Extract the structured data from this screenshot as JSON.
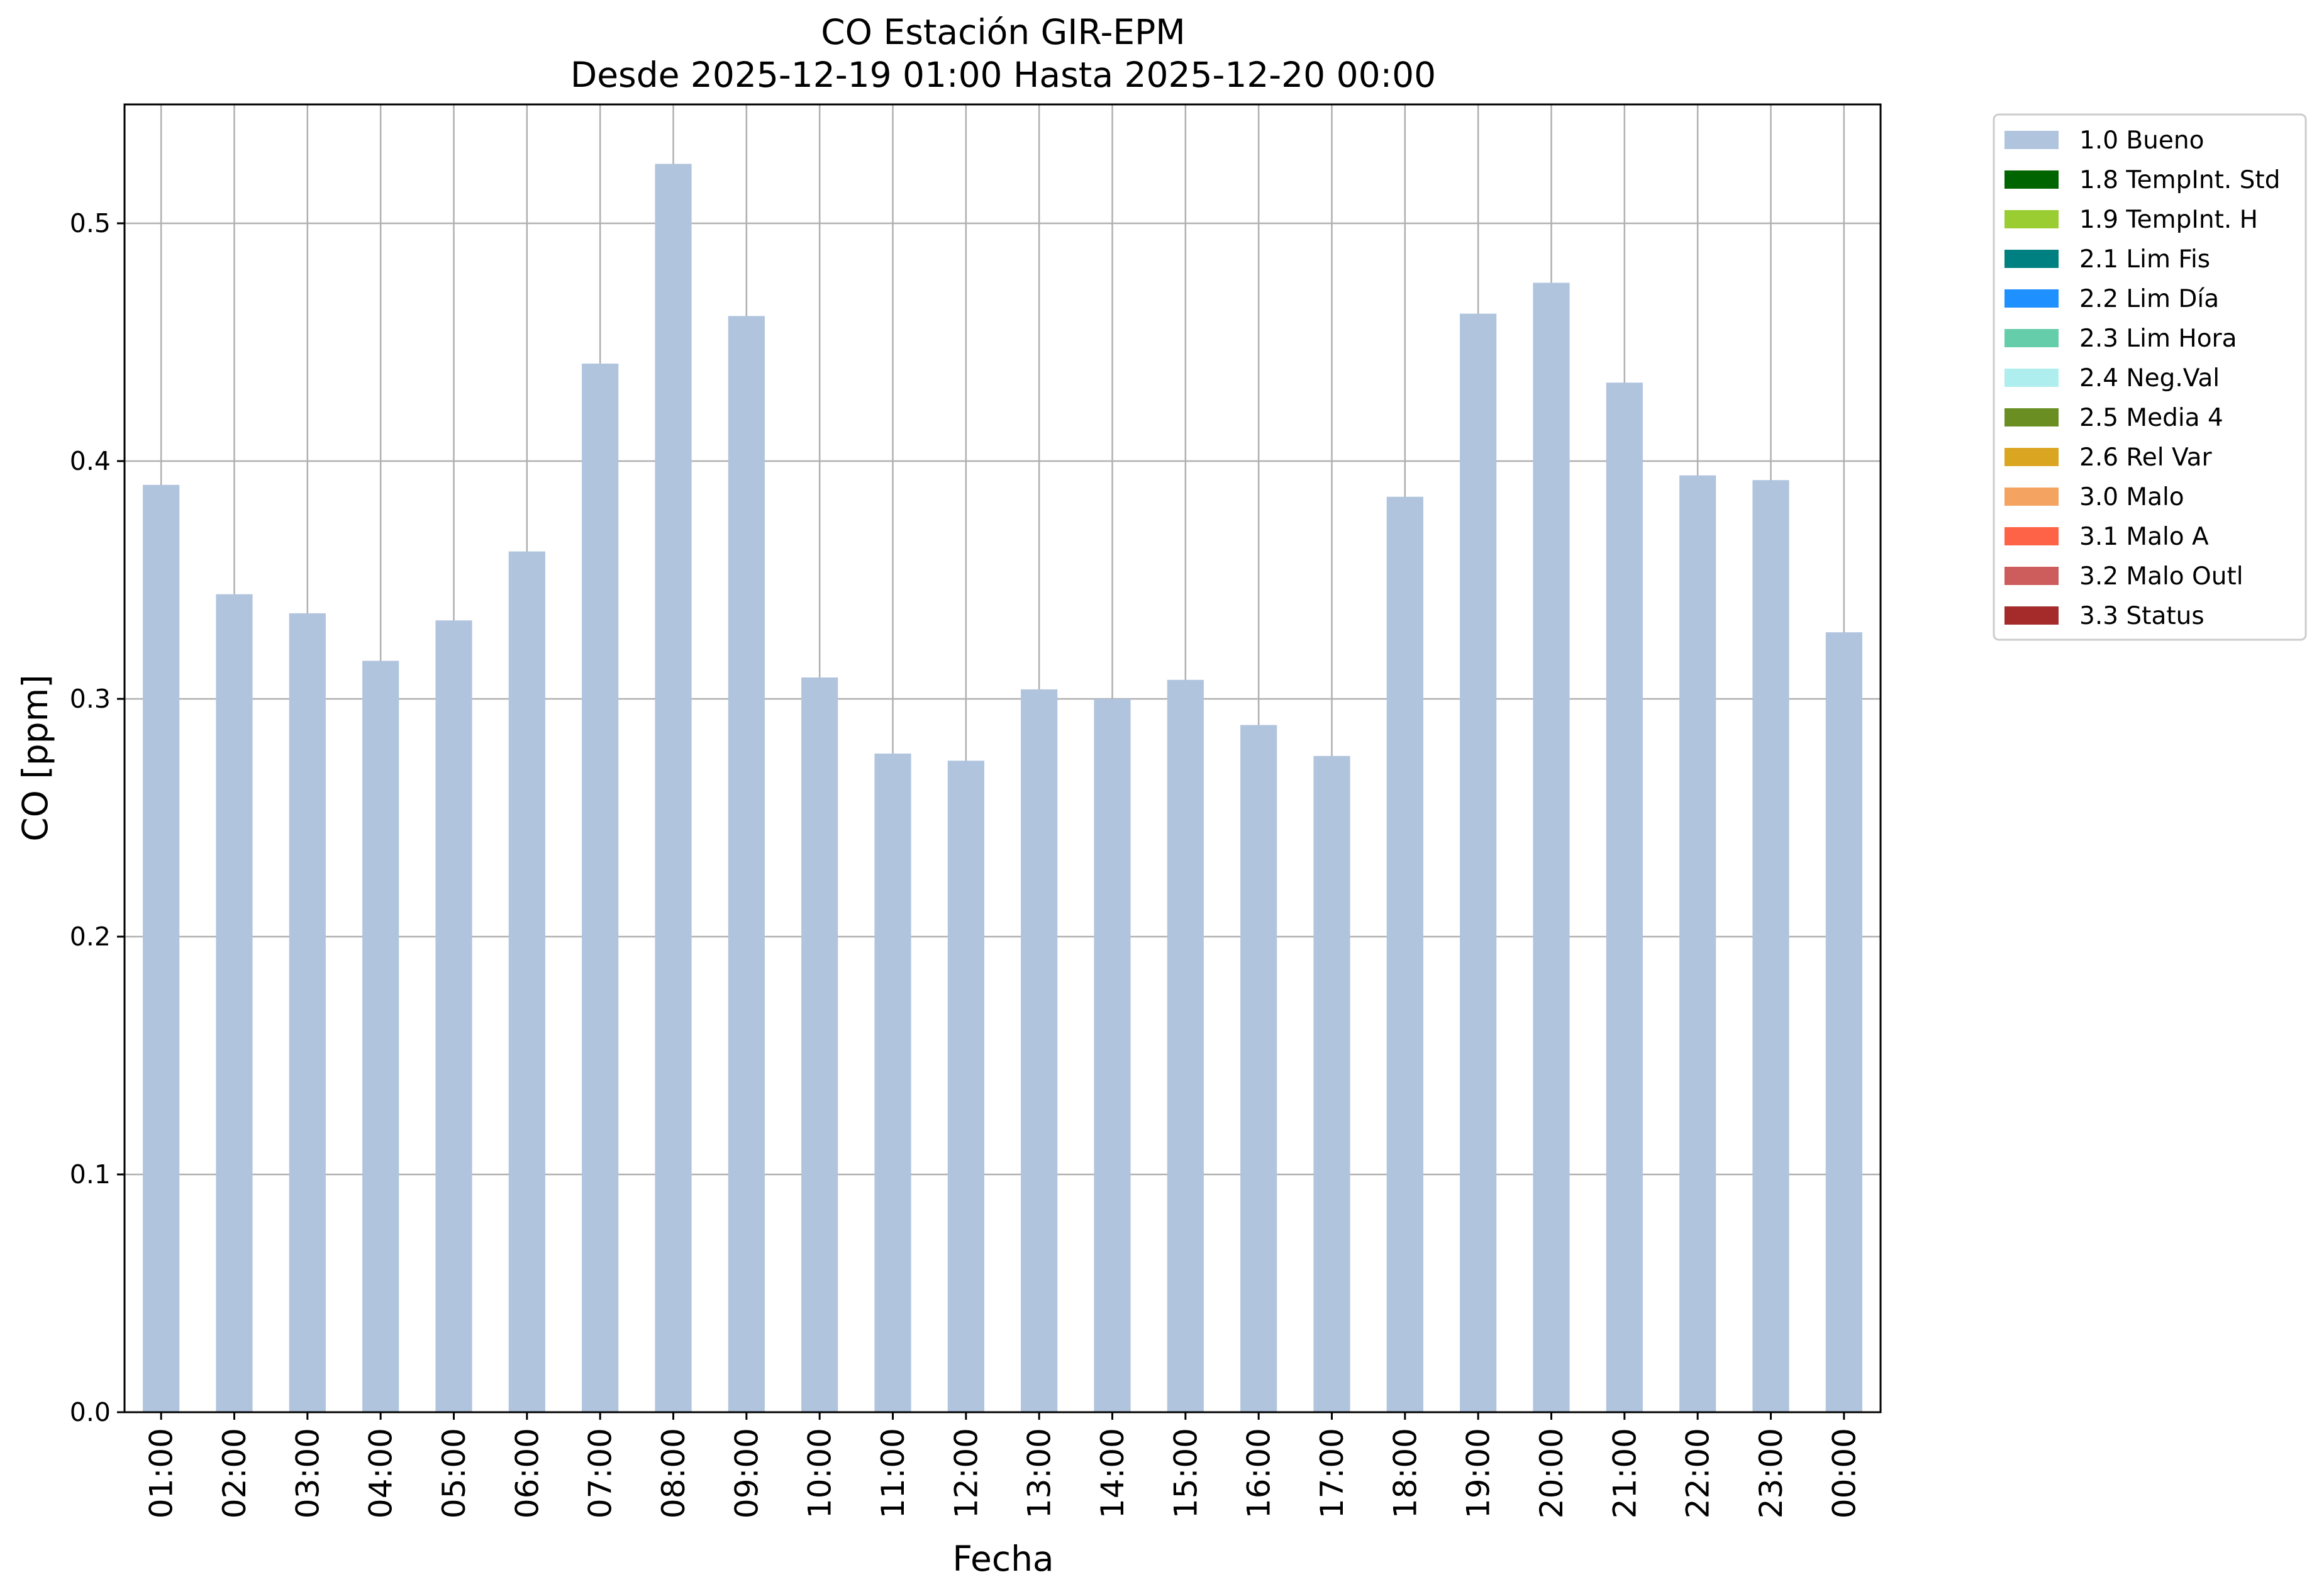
{
  "chart_data": {
    "type": "bar",
    "title": "CO Estación GIR-EPM",
    "subtitle": "Desde 2025-12-19 01:00 Hasta 2025-12-20 00:00",
    "xlabel": "Fecha",
    "ylabel": "CO [ppm]",
    "ylim": [
      0,
      0.55
    ],
    "yticks": [
      "0.0",
      "0.1",
      "0.2",
      "0.3",
      "0.4",
      "0.5"
    ],
    "grid": true,
    "legend_position": "upper right outside",
    "categories": [
      "01:00",
      "02:00",
      "03:00",
      "04:00",
      "05:00",
      "06:00",
      "07:00",
      "08:00",
      "09:00",
      "10:00",
      "11:00",
      "12:00",
      "13:00",
      "14:00",
      "15:00",
      "16:00",
      "17:00",
      "18:00",
      "19:00",
      "20:00",
      "21:00",
      "22:00",
      "23:00",
      "00:00"
    ],
    "series": [
      {
        "name": "1.0 Bueno",
        "color": "#b0c4de",
        "values": [
          0.39,
          0.344,
          0.336,
          0.316,
          0.333,
          0.362,
          0.441,
          0.525,
          0.461,
          0.309,
          0.277,
          0.274,
          0.304,
          0.3,
          0.308,
          0.289,
          0.276,
          0.385,
          0.462,
          0.475,
          0.433,
          0.394,
          0.392,
          0.328
        ]
      }
    ],
    "legend": [
      {
        "label": "1.0 Bueno",
        "color": "#b0c4de"
      },
      {
        "label": "1.8 TempInt. Std",
        "color": "#006400"
      },
      {
        "label": "1.9 TempInt. H",
        "color": "#9acd32"
      },
      {
        "label": "2.1 Lim Fis",
        "color": "#008080"
      },
      {
        "label": "2.2 Lim Día",
        "color": "#1e90ff"
      },
      {
        "label": "2.3 Lim Hora",
        "color": "#66cdaa"
      },
      {
        "label": "2.4 Neg.Val",
        "color": "#afeeee"
      },
      {
        "label": "2.5 Media 4",
        "color": "#6b8e23"
      },
      {
        "label": "2.6 Rel Var",
        "color": "#daa520"
      },
      {
        "label": "3.0 Malo",
        "color": "#f4a460"
      },
      {
        "label": "3.1 Malo A",
        "color": "#ff6347"
      },
      {
        "label": "3.2 Malo Outl",
        "color": "#cd5c5c"
      },
      {
        "label": "3.3 Status",
        "color": "#a52a2a"
      }
    ]
  }
}
